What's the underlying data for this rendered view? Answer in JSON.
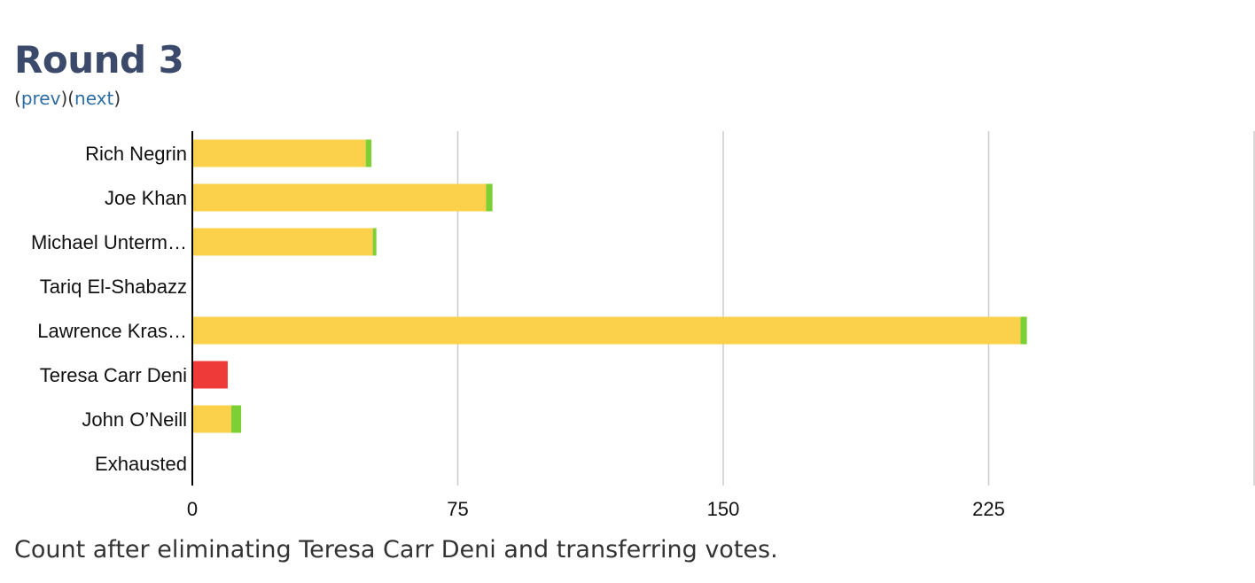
{
  "page": {
    "title": "Round 3",
    "nav": {
      "open1": "(",
      "prev": "prev",
      "mid": ")(",
      "next": "next",
      "close": ")"
    },
    "caption": "Count after eliminating Teresa Carr Deni and transferring votes."
  },
  "colors": {
    "retained": "#fbd14b",
    "transferred_in": "#7ccf34",
    "eliminated": "#ef3a3a",
    "grid": "#cccccc",
    "axis": "#000000"
  },
  "chart_data": {
    "type": "bar",
    "orientation": "horizontal",
    "stacked": true,
    "categories": [
      "Rich Negrin",
      "Joe Khan",
      "Michael Unterm…",
      "Tariq El-Shabazz",
      "Lawrence Kras…",
      "Teresa Carr Deni",
      "John O’Neill",
      "Exhausted"
    ],
    "series": [
      {
        "color_key": "retained",
        "values": [
          49,
          83,
          51,
          0,
          234,
          0,
          11,
          0
        ]
      },
      {
        "color_key": "transferred_in",
        "values": [
          1.6,
          1.8,
          1.0,
          0,
          1.8,
          0,
          2.8,
          0
        ]
      },
      {
        "color_key": "eliminated",
        "values": [
          0,
          0,
          0,
          0,
          0,
          10,
          0,
          0
        ]
      }
    ],
    "xlim": [
      0,
      300
    ],
    "xticks": [
      0,
      75,
      150,
      225
    ],
    "grid": true
  }
}
